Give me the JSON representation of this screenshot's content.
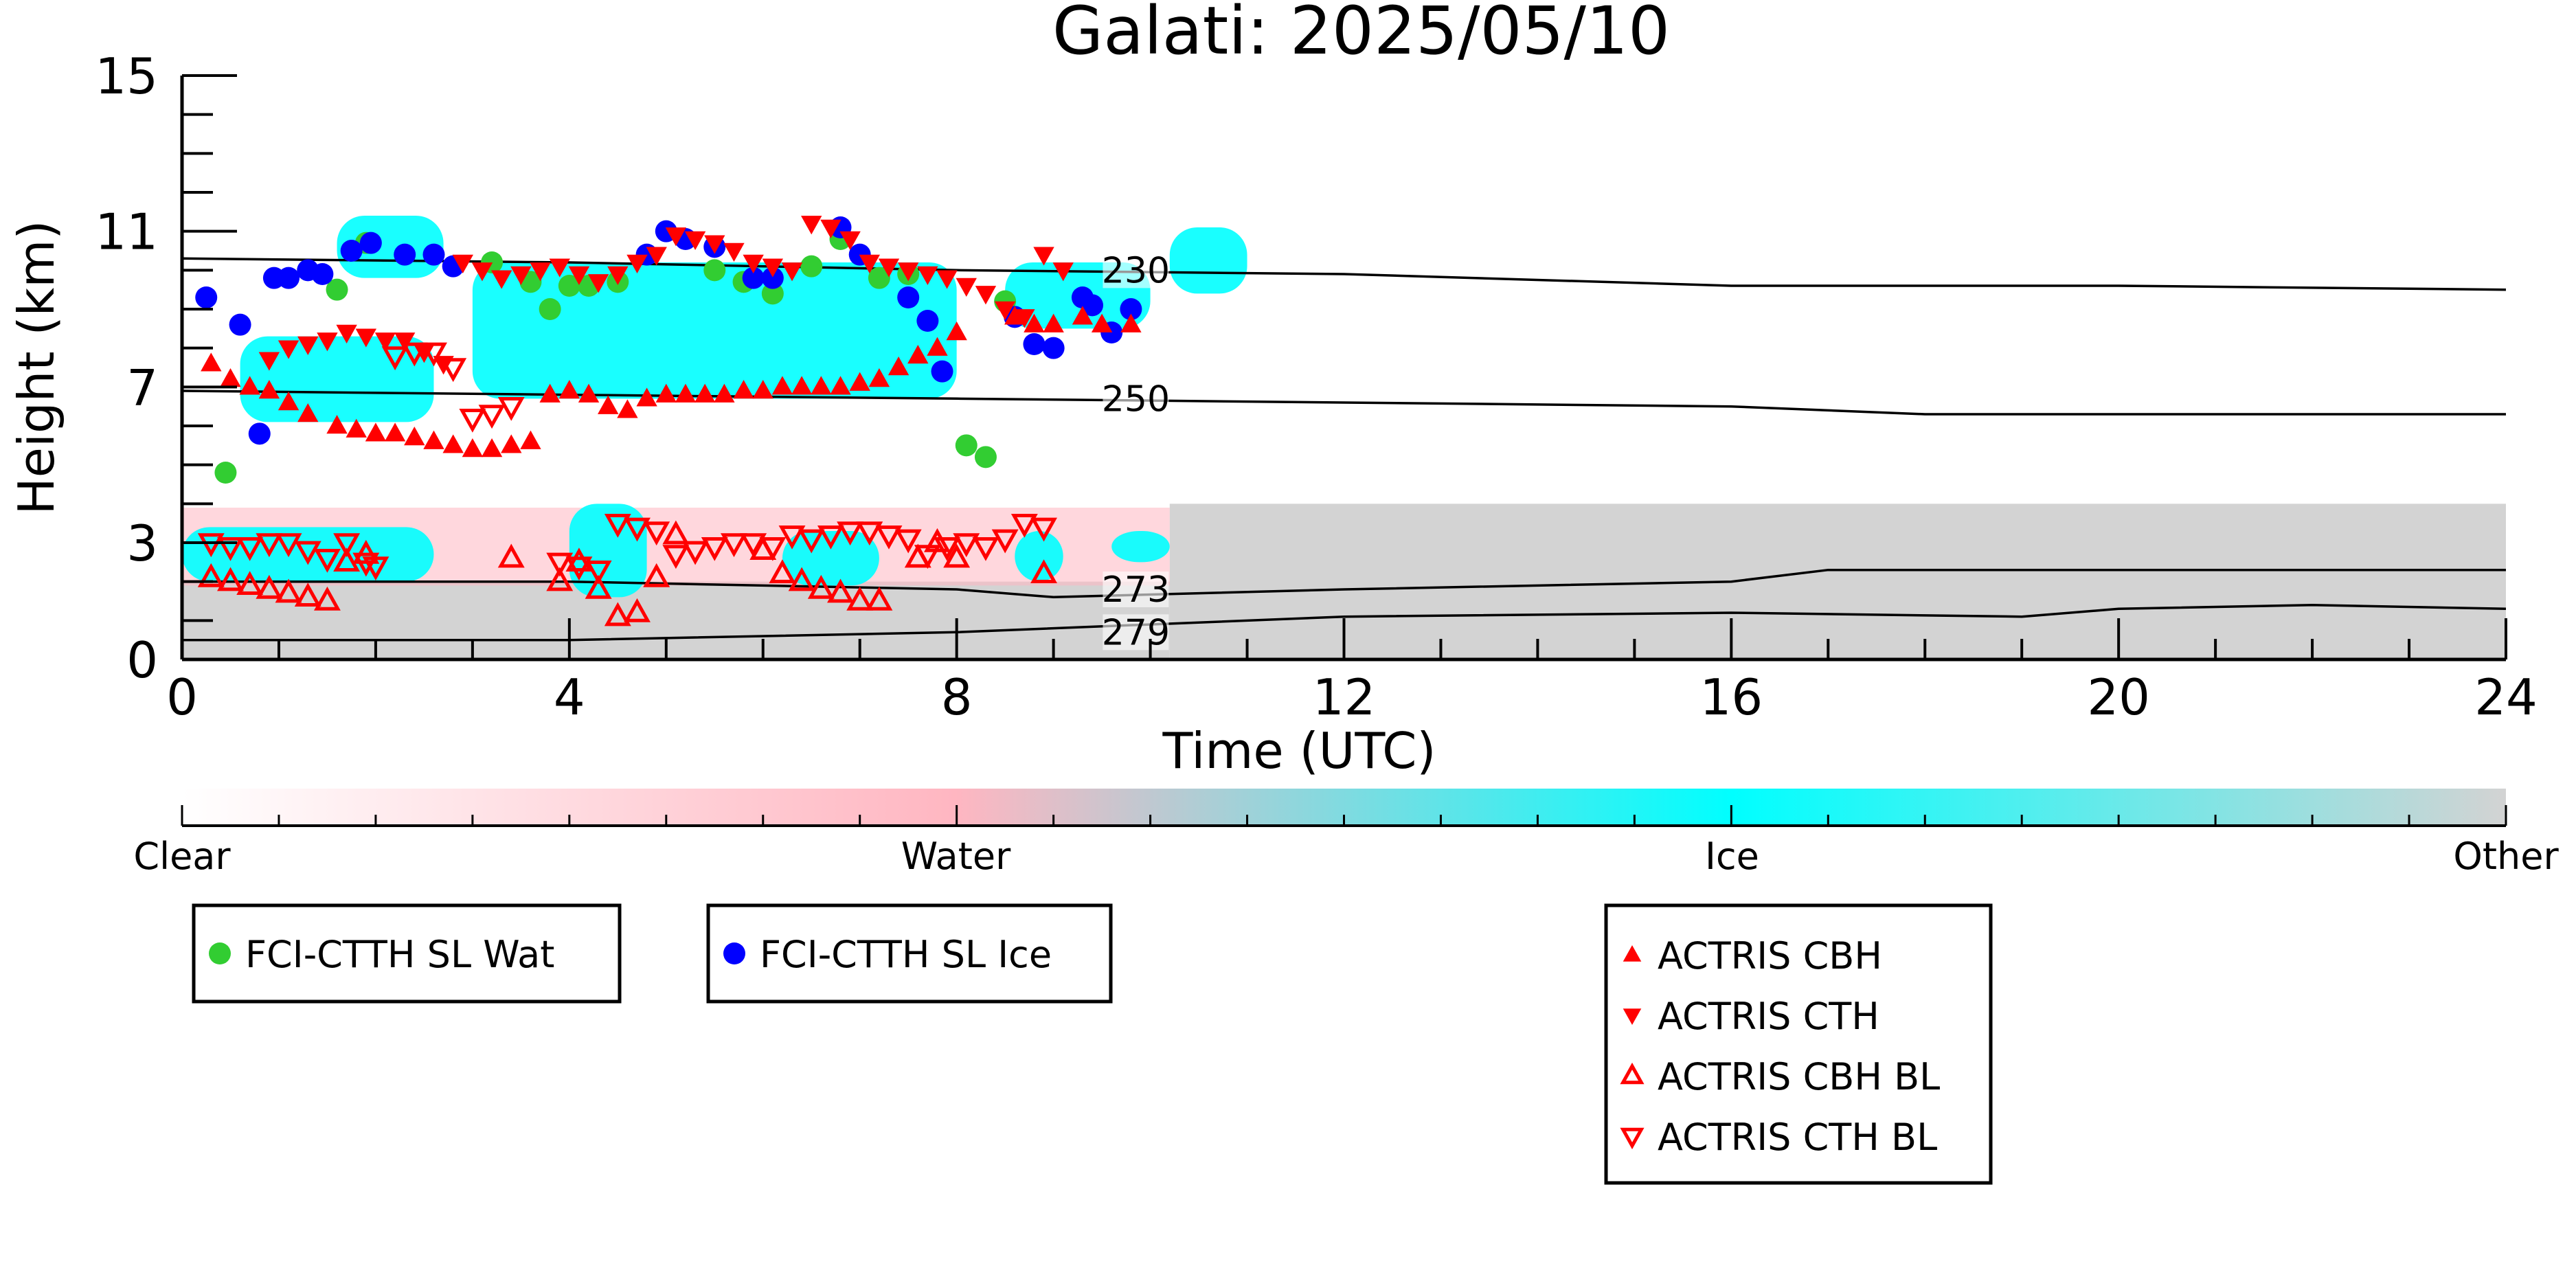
{
  "chart_data": {
    "type": "scatter",
    "title": "Galati: 2025/05/10",
    "xlabel": "Time (UTC)",
    "ylabel": "Height (km)",
    "xlim": [
      0,
      24
    ],
    "ylim": [
      0,
      15
    ],
    "x_ticks": [
      "0",
      "4",
      "8",
      "12",
      "16",
      "20",
      "24"
    ],
    "y_ticks": [
      "0",
      "3",
      "7",
      "11",
      "15"
    ],
    "colorbar": {
      "labels": [
        "Clear",
        "Water",
        "Ice",
        "Other"
      ],
      "colors": [
        "#ffffff",
        "#ffb6c1",
        "#00ffff",
        "#d3d3d3"
      ]
    },
    "isotherms": [
      {
        "label": "230",
        "points": [
          [
            0,
            10.3
          ],
          [
            4,
            10.2
          ],
          [
            8,
            10.0
          ],
          [
            12,
            9.9
          ],
          [
            16,
            9.6
          ],
          [
            20,
            9.6
          ],
          [
            24,
            9.5
          ]
        ]
      },
      {
        "label": "250",
        "points": [
          [
            0,
            6.9
          ],
          [
            4,
            6.8
          ],
          [
            8,
            6.7
          ],
          [
            12,
            6.6
          ],
          [
            16,
            6.5
          ],
          [
            18,
            6.3
          ],
          [
            20,
            6.3
          ],
          [
            24,
            6.3
          ]
        ]
      },
      {
        "label": "273",
        "points": [
          [
            0,
            2.0
          ],
          [
            4,
            2.0
          ],
          [
            8,
            1.8
          ],
          [
            9,
            1.6
          ],
          [
            12,
            1.8
          ],
          [
            16,
            2.0
          ],
          [
            17,
            2.3
          ],
          [
            18,
            2.3
          ],
          [
            20,
            2.3
          ],
          [
            24,
            2.3
          ]
        ]
      },
      {
        "label": "279",
        "points": [
          [
            0,
            0.5
          ],
          [
            4,
            0.5
          ],
          [
            8,
            0.7
          ],
          [
            12,
            1.1
          ],
          [
            16,
            1.2
          ],
          [
            19,
            1.1
          ],
          [
            20,
            1.3
          ],
          [
            22,
            1.4
          ],
          [
            24,
            1.3
          ]
        ]
      }
    ],
    "cloud_regions": [
      {
        "phase": "Other",
        "x": [
          10.2,
          24
        ],
        "y": [
          0,
          4.0
        ]
      },
      {
        "phase": "Other",
        "x": [
          0,
          10.2
        ],
        "y": [
          0,
          2.0
        ]
      },
      {
        "phase": "Water",
        "x": [
          0,
          10.2
        ],
        "y": [
          1.9,
          3.9
        ]
      },
      {
        "phase": "Ice",
        "x": [
          0.0,
          2.6
        ],
        "y": [
          2.0,
          3.4
        ]
      },
      {
        "phase": "Ice",
        "x": [
          4.0,
          4.8
        ],
        "y": [
          1.6,
          4.0
        ]
      },
      {
        "phase": "Ice",
        "x": [
          6.2,
          7.2
        ],
        "y": [
          1.9,
          3.3
        ]
      },
      {
        "phase": "Ice",
        "x": [
          8.6,
          9.1
        ],
        "y": [
          2.0,
          3.3
        ]
      },
      {
        "phase": "Ice",
        "x": [
          9.6,
          10.2
        ],
        "y": [
          2.5,
          3.3
        ]
      },
      {
        "phase": "Ice",
        "x": [
          0.6,
          2.6
        ],
        "y": [
          6.1,
          8.3
        ]
      },
      {
        "phase": "Ice",
        "x": [
          1.6,
          2.7
        ],
        "y": [
          9.8,
          11.4
        ]
      },
      {
        "phase": "Ice",
        "x": [
          3.0,
          8.0
        ],
        "y": [
          6.7,
          10.2
        ]
      },
      {
        "phase": "Ice",
        "x": [
          8.5,
          10.0
        ],
        "y": [
          8.5,
          10.2
        ]
      },
      {
        "phase": "Ice",
        "x": [
          10.2,
          11.0
        ],
        "y": [
          9.4,
          11.1
        ]
      }
    ],
    "series": [
      {
        "name": "FCI-CTTH SL Wat",
        "marker": "filled-circle",
        "color": "#32cd32",
        "x": [
          0.45,
          1.6,
          1.9,
          3.2,
          3.6,
          3.8,
          4.0,
          4.2,
          4.5,
          5.5,
          5.8,
          6.1,
          6.5,
          6.8,
          7.2,
          7.5,
          8.1,
          8.3,
          8.5
        ],
        "y": [
          4.8,
          9.5,
          10.7,
          10.2,
          9.7,
          9.0,
          9.6,
          9.6,
          9.7,
          10.0,
          9.7,
          9.4,
          10.1,
          10.8,
          9.8,
          9.9,
          5.5,
          5.2,
          9.2
        ]
      },
      {
        "name": "FCI-CTTH SL Ice",
        "marker": "filled-circle",
        "color": "#0000ff",
        "x": [
          0.25,
          0.6,
          0.8,
          0.95,
          1.1,
          1.3,
          1.45,
          1.75,
          1.95,
          2.3,
          2.6,
          2.8,
          4.8,
          5.0,
          5.2,
          5.5,
          5.9,
          6.1,
          6.8,
          7.0,
          7.5,
          7.7,
          7.85,
          8.6,
          8.8,
          9.0,
          9.3,
          9.4,
          9.6,
          9.8
        ],
        "y": [
          9.3,
          8.6,
          5.8,
          9.8,
          9.8,
          10.0,
          9.9,
          10.5,
          10.7,
          10.4,
          10.4,
          10.1,
          10.4,
          11.0,
          10.8,
          10.6,
          9.8,
          9.8,
          11.1,
          10.4,
          9.3,
          8.7,
          7.4,
          8.8,
          8.1,
          8.0,
          9.3,
          9.1,
          8.4,
          9.0
        ]
      },
      {
        "name": "ACTRIS CBH",
        "marker": "triangle-up-filled",
        "color": "#ff0000",
        "x": [
          0.3,
          0.5,
          0.7,
          0.9,
          1.1,
          1.3,
          1.6,
          1.8,
          2.0,
          2.2,
          2.4,
          2.6,
          2.8,
          3.0,
          3.2,
          3.4,
          3.6,
          3.8,
          4.0,
          4.2,
          4.4,
          4.6,
          4.8,
          5.0,
          5.2,
          5.4,
          5.6,
          5.8,
          6.0,
          6.2,
          6.4,
          6.6,
          6.8,
          7.0,
          7.2,
          7.4,
          7.6,
          7.8,
          8.0,
          8.6,
          8.8,
          9.0,
          9.3,
          9.5,
          9.8
        ],
        "y": [
          7.6,
          7.2,
          7.0,
          6.9,
          6.6,
          6.3,
          6.0,
          5.9,
          5.8,
          5.8,
          5.7,
          5.6,
          5.5,
          5.4,
          5.4,
          5.5,
          5.6,
          6.8,
          6.9,
          6.8,
          6.5,
          6.4,
          6.7,
          6.8,
          6.8,
          6.8,
          6.8,
          6.9,
          6.9,
          7.0,
          7.0,
          7.0,
          7.0,
          7.1,
          7.2,
          7.5,
          7.8,
          8.0,
          8.4,
          8.8,
          8.6,
          8.6,
          8.8,
          8.6,
          8.6
        ]
      },
      {
        "name": "ACTRIS CTH",
        "marker": "triangle-down-filled",
        "color": "#ff0000",
        "x": [
          0.9,
          1.1,
          1.3,
          1.5,
          1.7,
          1.9,
          2.1,
          2.3,
          2.5,
          2.7,
          2.9,
          3.1,
          3.3,
          3.5,
          3.7,
          3.9,
          4.1,
          4.3,
          4.5,
          4.7,
          4.9,
          5.1,
          5.3,
          5.5,
          5.7,
          5.9,
          6.1,
          6.3,
          6.5,
          6.7,
          6.9,
          7.1,
          7.3,
          7.5,
          7.7,
          7.9,
          8.1,
          8.3,
          8.5,
          8.7,
          8.9,
          9.1
        ],
        "y": [
          7.7,
          8.0,
          8.1,
          8.2,
          8.4,
          8.3,
          8.2,
          8.2,
          7.9,
          7.6,
          10.2,
          10.0,
          9.8,
          9.9,
          10.0,
          10.1,
          9.9,
          9.7,
          9.9,
          10.2,
          10.4,
          10.9,
          10.8,
          10.7,
          10.5,
          10.2,
          10.1,
          10.0,
          11.2,
          11.1,
          10.8,
          10.2,
          10.1,
          10.0,
          9.9,
          9.8,
          9.6,
          9.4,
          9.0,
          8.8,
          10.4,
          10.0
        ]
      },
      {
        "name": "ACTRIS CBH BL",
        "marker": "triangle-up-open",
        "color": "#ff0000",
        "x": [
          0.3,
          0.5,
          0.7,
          0.9,
          1.1,
          1.3,
          1.5,
          1.7,
          1.9,
          3.4,
          3.9,
          4.1,
          4.3,
          4.5,
          4.7,
          4.9,
          5.1,
          6.0,
          6.2,
          6.4,
          6.6,
          6.8,
          7.0,
          7.2,
          7.6,
          7.8,
          8.0,
          8.9
        ],
        "y": [
          2.1,
          2.0,
          1.9,
          1.8,
          1.7,
          1.6,
          1.5,
          2.5,
          2.7,
          2.6,
          2.0,
          2.5,
          1.8,
          1.1,
          1.2,
          2.1,
          3.2,
          2.8,
          2.2,
          2.0,
          1.8,
          1.7,
          1.5,
          1.5,
          2.6,
          3.0,
          2.6,
          2.2
        ]
      },
      {
        "name": "ACTRIS CTH BL",
        "marker": "triangle-down-open",
        "color": "#ff0000",
        "x": [
          0.3,
          0.5,
          0.7,
          0.9,
          1.1,
          1.3,
          1.5,
          1.7,
          1.9,
          2.0,
          2.2,
          2.4,
          2.6,
          2.8,
          3.0,
          3.2,
          3.4,
          3.9,
          4.1,
          4.3,
          4.5,
          4.7,
          4.9,
          5.1,
          5.3,
          5.5,
          5.7,
          5.9,
          6.1,
          6.3,
          6.5,
          6.7,
          6.9,
          7.1,
          7.3,
          7.5,
          7.7,
          7.9,
          8.1,
          8.3,
          8.5,
          8.7,
          8.9
        ],
        "y": [
          3.0,
          2.9,
          2.9,
          3.0,
          3.0,
          2.8,
          2.6,
          3.0,
          2.5,
          2.4,
          7.8,
          7.9,
          7.9,
          7.5,
          6.2,
          6.3,
          6.5,
          2.5,
          2.4,
          2.3,
          3.5,
          3.4,
          3.3,
          2.7,
          2.8,
          2.9,
          3.0,
          3.0,
          2.9,
          3.2,
          3.1,
          3.2,
          3.3,
          3.3,
          3.2,
          3.1,
          2.7,
          2.9,
          3.0,
          2.9,
          3.1,
          3.5,
          3.4
        ]
      }
    ],
    "grid": false
  }
}
